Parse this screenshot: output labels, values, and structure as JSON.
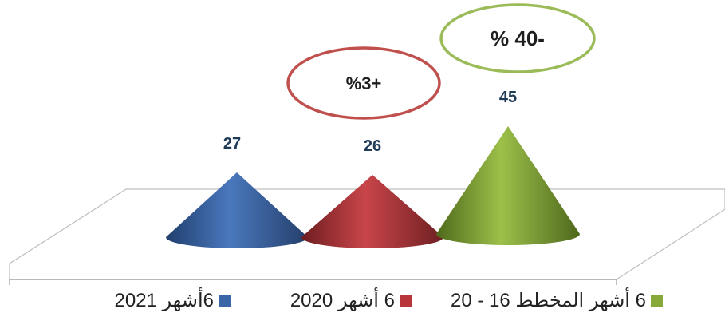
{
  "chart_data": {
    "type": "cone",
    "categories": [
      "6أشهر 2021",
      "6 أشهر 2020",
      "6 أشهر المخطط 16 - 20"
    ],
    "values": [
      27,
      26,
      45
    ],
    "value_labels": [
      "27",
      "26",
      "45"
    ],
    "colors": [
      "#3a66a8",
      "#b8353a",
      "#86a93a"
    ],
    "annotations": [
      {
        "text": "%3+",
        "target_category": "6 أشهر 2020",
        "border_color": "#c0504d"
      },
      {
        "text": "% 40-",
        "target_category": "6 أشهر المخطط 16 - 20",
        "border_color": "#9bbb59"
      }
    ],
    "legend": {
      "position": "bottom"
    },
    "grid": false
  }
}
